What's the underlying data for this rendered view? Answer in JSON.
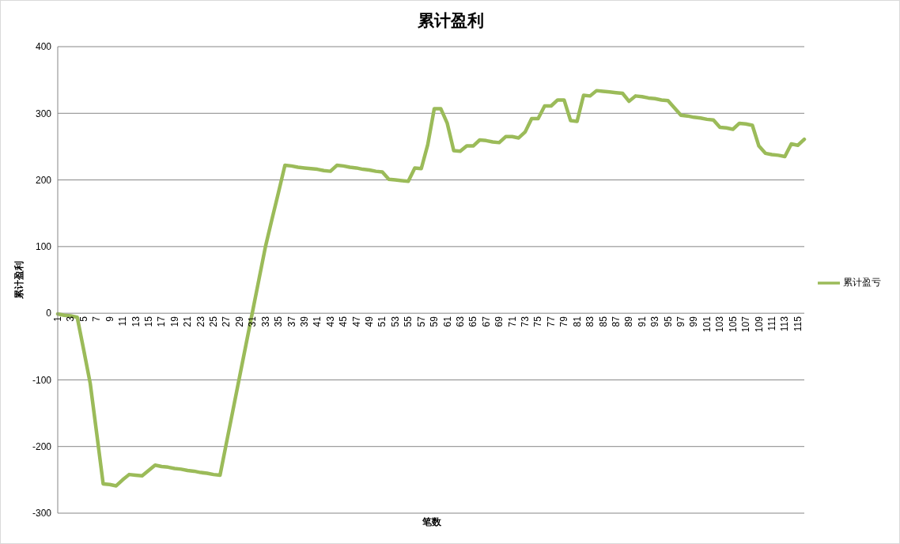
{
  "chart_data": {
    "type": "line",
    "title": "累计盈利",
    "xlabel": "笔数",
    "ylabel": "累计盈利",
    "categories": [
      "1",
      null,
      "3",
      null,
      "5",
      null,
      "7",
      null,
      "9",
      null,
      "11",
      null,
      "13",
      null,
      "15",
      null,
      "17",
      null,
      "19",
      null,
      "21",
      null,
      "23",
      null,
      "25",
      null,
      "27",
      null,
      "29",
      null,
      "31",
      null,
      "33",
      null,
      "35",
      null,
      "37",
      null,
      "39",
      null,
      "41",
      null,
      "43",
      null,
      "45",
      null,
      "47",
      null,
      "49",
      null,
      "51",
      null,
      "53",
      null,
      "55",
      null,
      "57",
      null,
      "59",
      null,
      "61",
      null,
      "63",
      null,
      "65",
      null,
      "67",
      null,
      "69",
      null,
      "71",
      null,
      "73",
      null,
      "75",
      null,
      "77",
      null,
      "79",
      null,
      "81",
      null,
      "83",
      null,
      "85",
      null,
      "87",
      null,
      "89",
      null,
      "91",
      null,
      "93",
      null,
      "95",
      null,
      "97",
      null,
      "99",
      null,
      "101",
      null,
      "103",
      null,
      "105",
      null,
      "107",
      null,
      "109",
      null,
      "111",
      null,
      "113",
      null,
      "115",
      null
    ],
    "series": [
      {
        "name": "累计盈亏",
        "color": "#9bbb59",
        "values": [
          -1,
          -3,
          -4,
          -6,
          -55,
          -105,
          -180,
          -256,
          -257,
          -259,
          -250,
          -242,
          -243,
          -244,
          -236,
          -228,
          -230,
          -231,
          -233,
          -234,
          -236,
          -237,
          -239,
          -240,
          -242,
          -243,
          -194,
          -145,
          -96,
          -47,
          2,
          51,
          100,
          141,
          181,
          222,
          221,
          219,
          218,
          217,
          216,
          214,
          213,
          222,
          221,
          219,
          218,
          216,
          215,
          213,
          212,
          201,
          200,
          199,
          198,
          218,
          217,
          253,
          307,
          307,
          285,
          244,
          243,
          251,
          251,
          260,
          259,
          257,
          256,
          265,
          265,
          263,
          272,
          292,
          292,
          311,
          311,
          320,
          320,
          289,
          288,
          327,
          326,
          334,
          333,
          332,
          331,
          330,
          318,
          326,
          325,
          323,
          322,
          320,
          319,
          308,
          297,
          296,
          294,
          293,
          291,
          290,
          279,
          278,
          276,
          285,
          284,
          282,
          251,
          240,
          238,
          237,
          235,
          254,
          252,
          261
        ]
      }
    ],
    "ylim": [
      -300,
      400
    ],
    "yticks": [
      -300,
      -200,
      -100,
      0,
      100,
      200,
      300,
      400
    ],
    "grid": "y",
    "legend": "right",
    "marker": "none",
    "line_style": "solid"
  }
}
